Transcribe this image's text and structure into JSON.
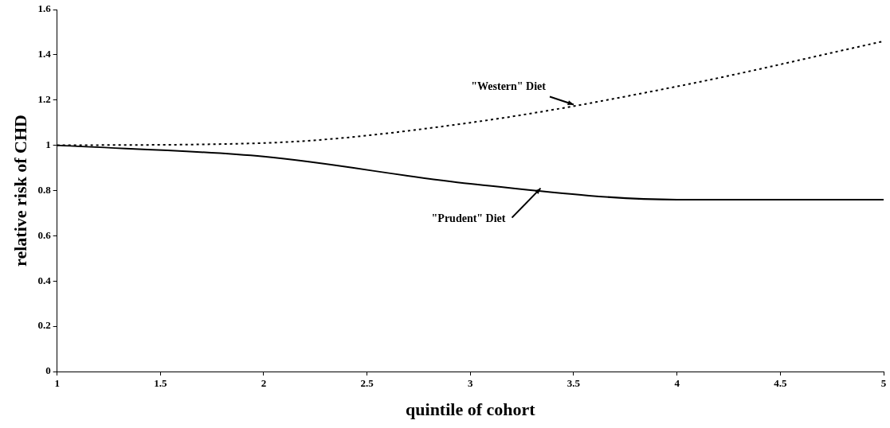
{
  "chart_data": {
    "type": "line",
    "xlabel": "quintile of cohort",
    "ylabel": "relative risk of CHD",
    "x": [
      1,
      2,
      3,
      4,
      5
    ],
    "series": [
      {
        "color": "#000000",
        "line_style": "dotted",
        "values": [
          1,
          1.01,
          1.1,
          1.26,
          1.46
        ]
      },
      {
        "color": "#000000",
        "line_style": "solid",
        "values": [
          1,
          0.95,
          0.83,
          0.76,
          0.76
        ]
      }
    ],
    "xlim": [
      1,
      5
    ],
    "xticks": [
      1,
      1.5,
      2,
      2.5,
      3,
      3.5,
      4,
      4.5,
      5
    ],
    "ylim": [
      0,
      1.6
    ],
    "yticks": [
      0,
      0.2,
      0.4,
      0.6,
      0.8,
      1,
      1.2,
      1.4,
      1.6
    ],
    "grid": false,
    "legend": false,
    "marker": "none",
    "annotations": [
      {
        "text": "\"Western\" Diet",
        "x": 3.5,
        "y": 1.18
      },
      {
        "text": "\"Prudent\" Diet",
        "x": 3.34,
        "y": 0.81
      }
    ]
  }
}
